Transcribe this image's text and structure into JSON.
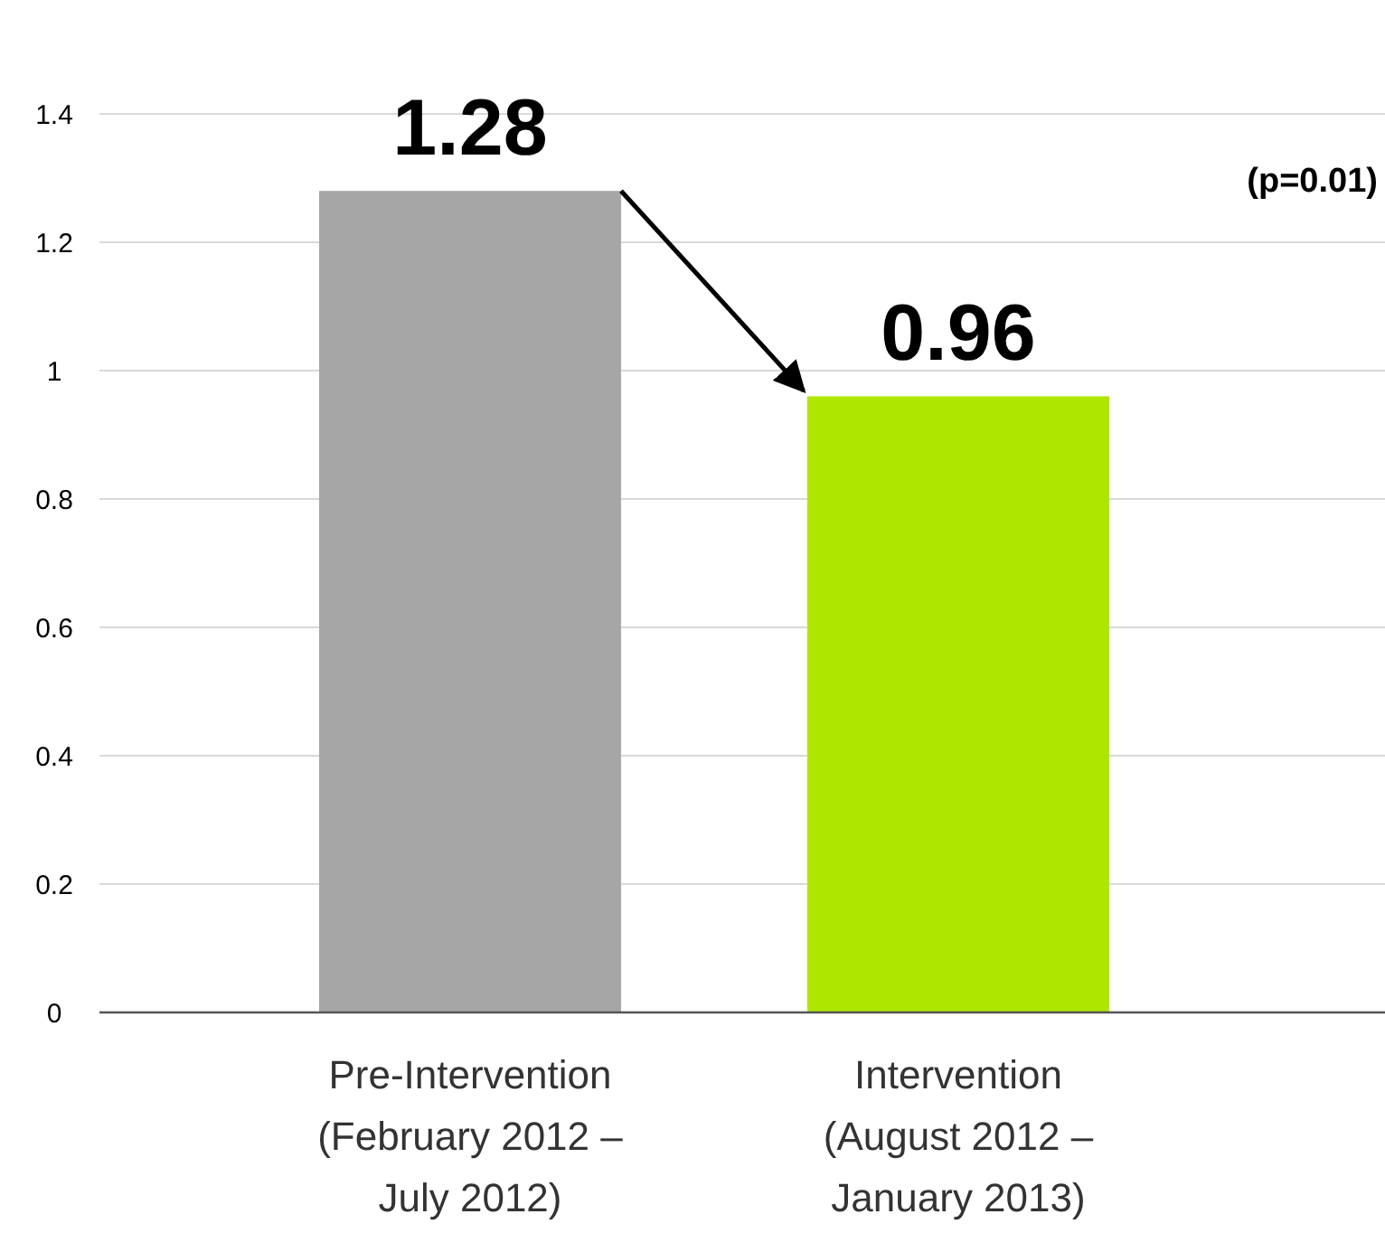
{
  "chart_data": {
    "type": "bar",
    "categories": [
      "Pre-Intervention\n(February 2012 –\nJuly 2012)",
      "Intervention\n(August 2012 –\nJanuary 2013)"
    ],
    "values": [
      1.28,
      0.96
    ],
    "colors": [
      "#a6a6a6",
      "#aee600"
    ],
    "ylim": [
      0,
      1.4
    ],
    "yticks": [
      0,
      0.2,
      0.4,
      0.6,
      0.8,
      1,
      1.2,
      1.4
    ],
    "grid": "y",
    "data_labels": true,
    "annotations": [
      "(p=0.01)"
    ]
  }
}
